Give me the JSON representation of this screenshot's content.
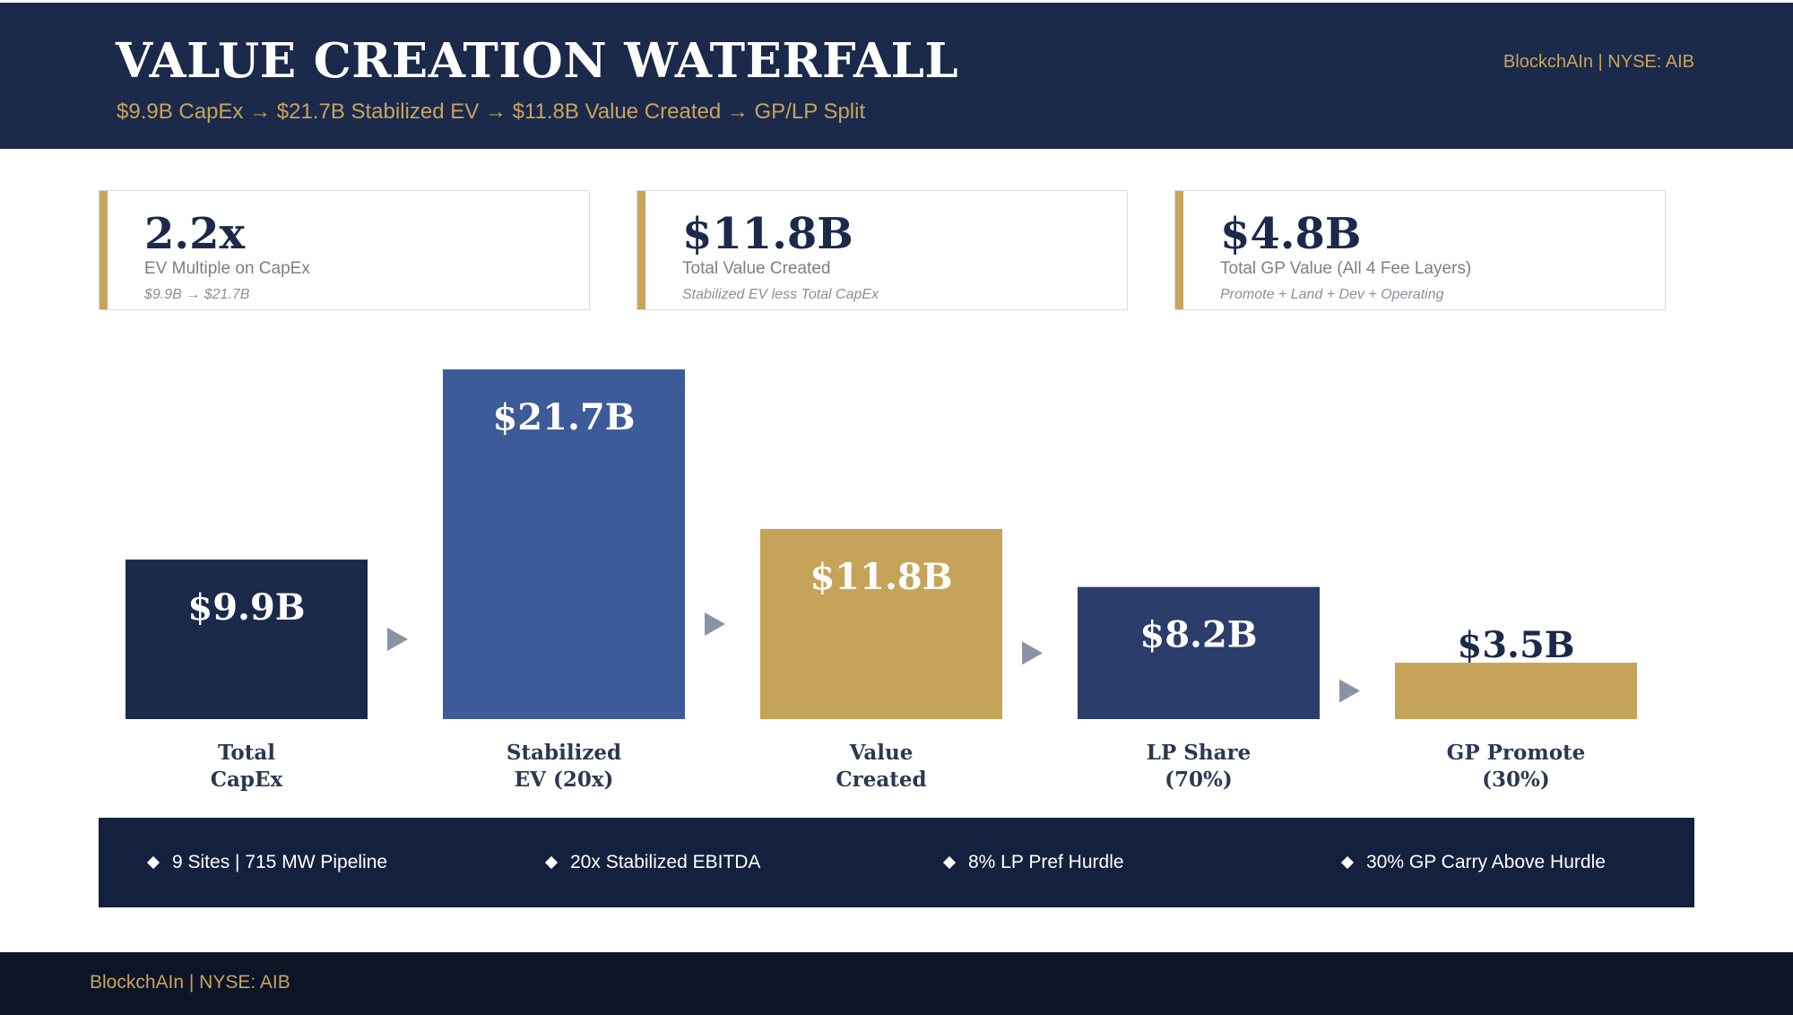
{
  "header": {
    "title": "VALUE CREATION WATERFALL",
    "subtitle": "$9.9B CapEx  →  $21.7B Stabilized EV  →  $11.8B Value Created  →  GP/LP Split",
    "brand": "BlockchAIn  |  NYSE: AIB"
  },
  "kpis": [
    {
      "value": "2.2x",
      "label": "EV Multiple on CapEx",
      "note": "$9.9B → $21.7B"
    },
    {
      "value": "$11.8B",
      "label": "Total Value Created",
      "note": "Stabilized EV less Total CapEx"
    },
    {
      "value": "$4.8B",
      "label": "Total GP Value (All 4 Fee Layers)",
      "note": "Promote + Land + Dev + Operating"
    }
  ],
  "chart_data": {
    "type": "bar",
    "title": "Value Creation Waterfall",
    "unit": "$B",
    "categories": [
      "Total CapEx",
      "Stabilized EV (20x)",
      "Value Created",
      "LP Share (70%)",
      "GP Promote (30%)"
    ],
    "category_lines": [
      [
        "Total",
        "CapEx"
      ],
      [
        "Stabilized",
        "EV (20x)"
      ],
      [
        "Value",
        "Created"
      ],
      [
        "LP Share",
        "(70%)"
      ],
      [
        "GP Promote",
        "(30%)"
      ]
    ],
    "values": [
      9.9,
      21.7,
      11.8,
      8.2,
      3.5
    ],
    "value_labels": [
      "$9.9B",
      "$21.7B",
      "$11.8B",
      "$8.2B",
      "$3.5B"
    ],
    "colors": [
      "#1b2a4b",
      "#3d5b98",
      "#c5a359",
      "#2b3d6b",
      "#c5a359"
    ],
    "connector_color": "#8a93a6",
    "ylim": [
      0,
      21.7
    ]
  },
  "facts": [
    "9 Sites  |  715 MW Pipeline",
    "20x Stabilized EBITDA",
    "8% LP Pref Hurdle",
    "30% GP Carry Above Hurdle"
  ],
  "footer": {
    "brand": "BlockchAIn  |  NYSE: AIB"
  }
}
